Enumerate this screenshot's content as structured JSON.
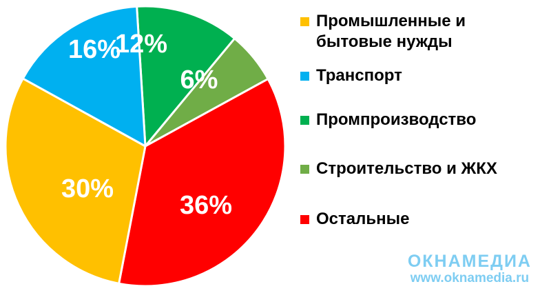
{
  "chart_data": {
    "type": "pie",
    "title": "",
    "slices": [
      {
        "name": "Промышленные и бытовые нужды",
        "label_lines": [
          "Промышленные и",
          "бытовые нужды"
        ],
        "value": 30,
        "label": "30%",
        "color": "#ffc000"
      },
      {
        "name": "Транспорт",
        "label_lines": [
          "Транспорт"
        ],
        "value": 16,
        "label": "16%",
        "color": "#00b0f0"
      },
      {
        "name": "Промпроизводство",
        "label_lines": [
          "Промпроизводство"
        ],
        "value": 12,
        "label": "12%",
        "color": "#00b050"
      },
      {
        "name": "Строительство и ЖКХ",
        "label_lines": [
          "Строительство и ЖКХ"
        ],
        "value": 6,
        "label": "6%",
        "color": "#70ad47"
      },
      {
        "name": "Остальные",
        "label_lines": [
          "Остальные"
        ],
        "value": 36,
        "label": "36%",
        "color": "#ff0000"
      }
    ],
    "legend_position": "right"
  },
  "watermark": {
    "logo": "ОКНАМЕДИА",
    "url": "www.oknamedia.ru"
  }
}
